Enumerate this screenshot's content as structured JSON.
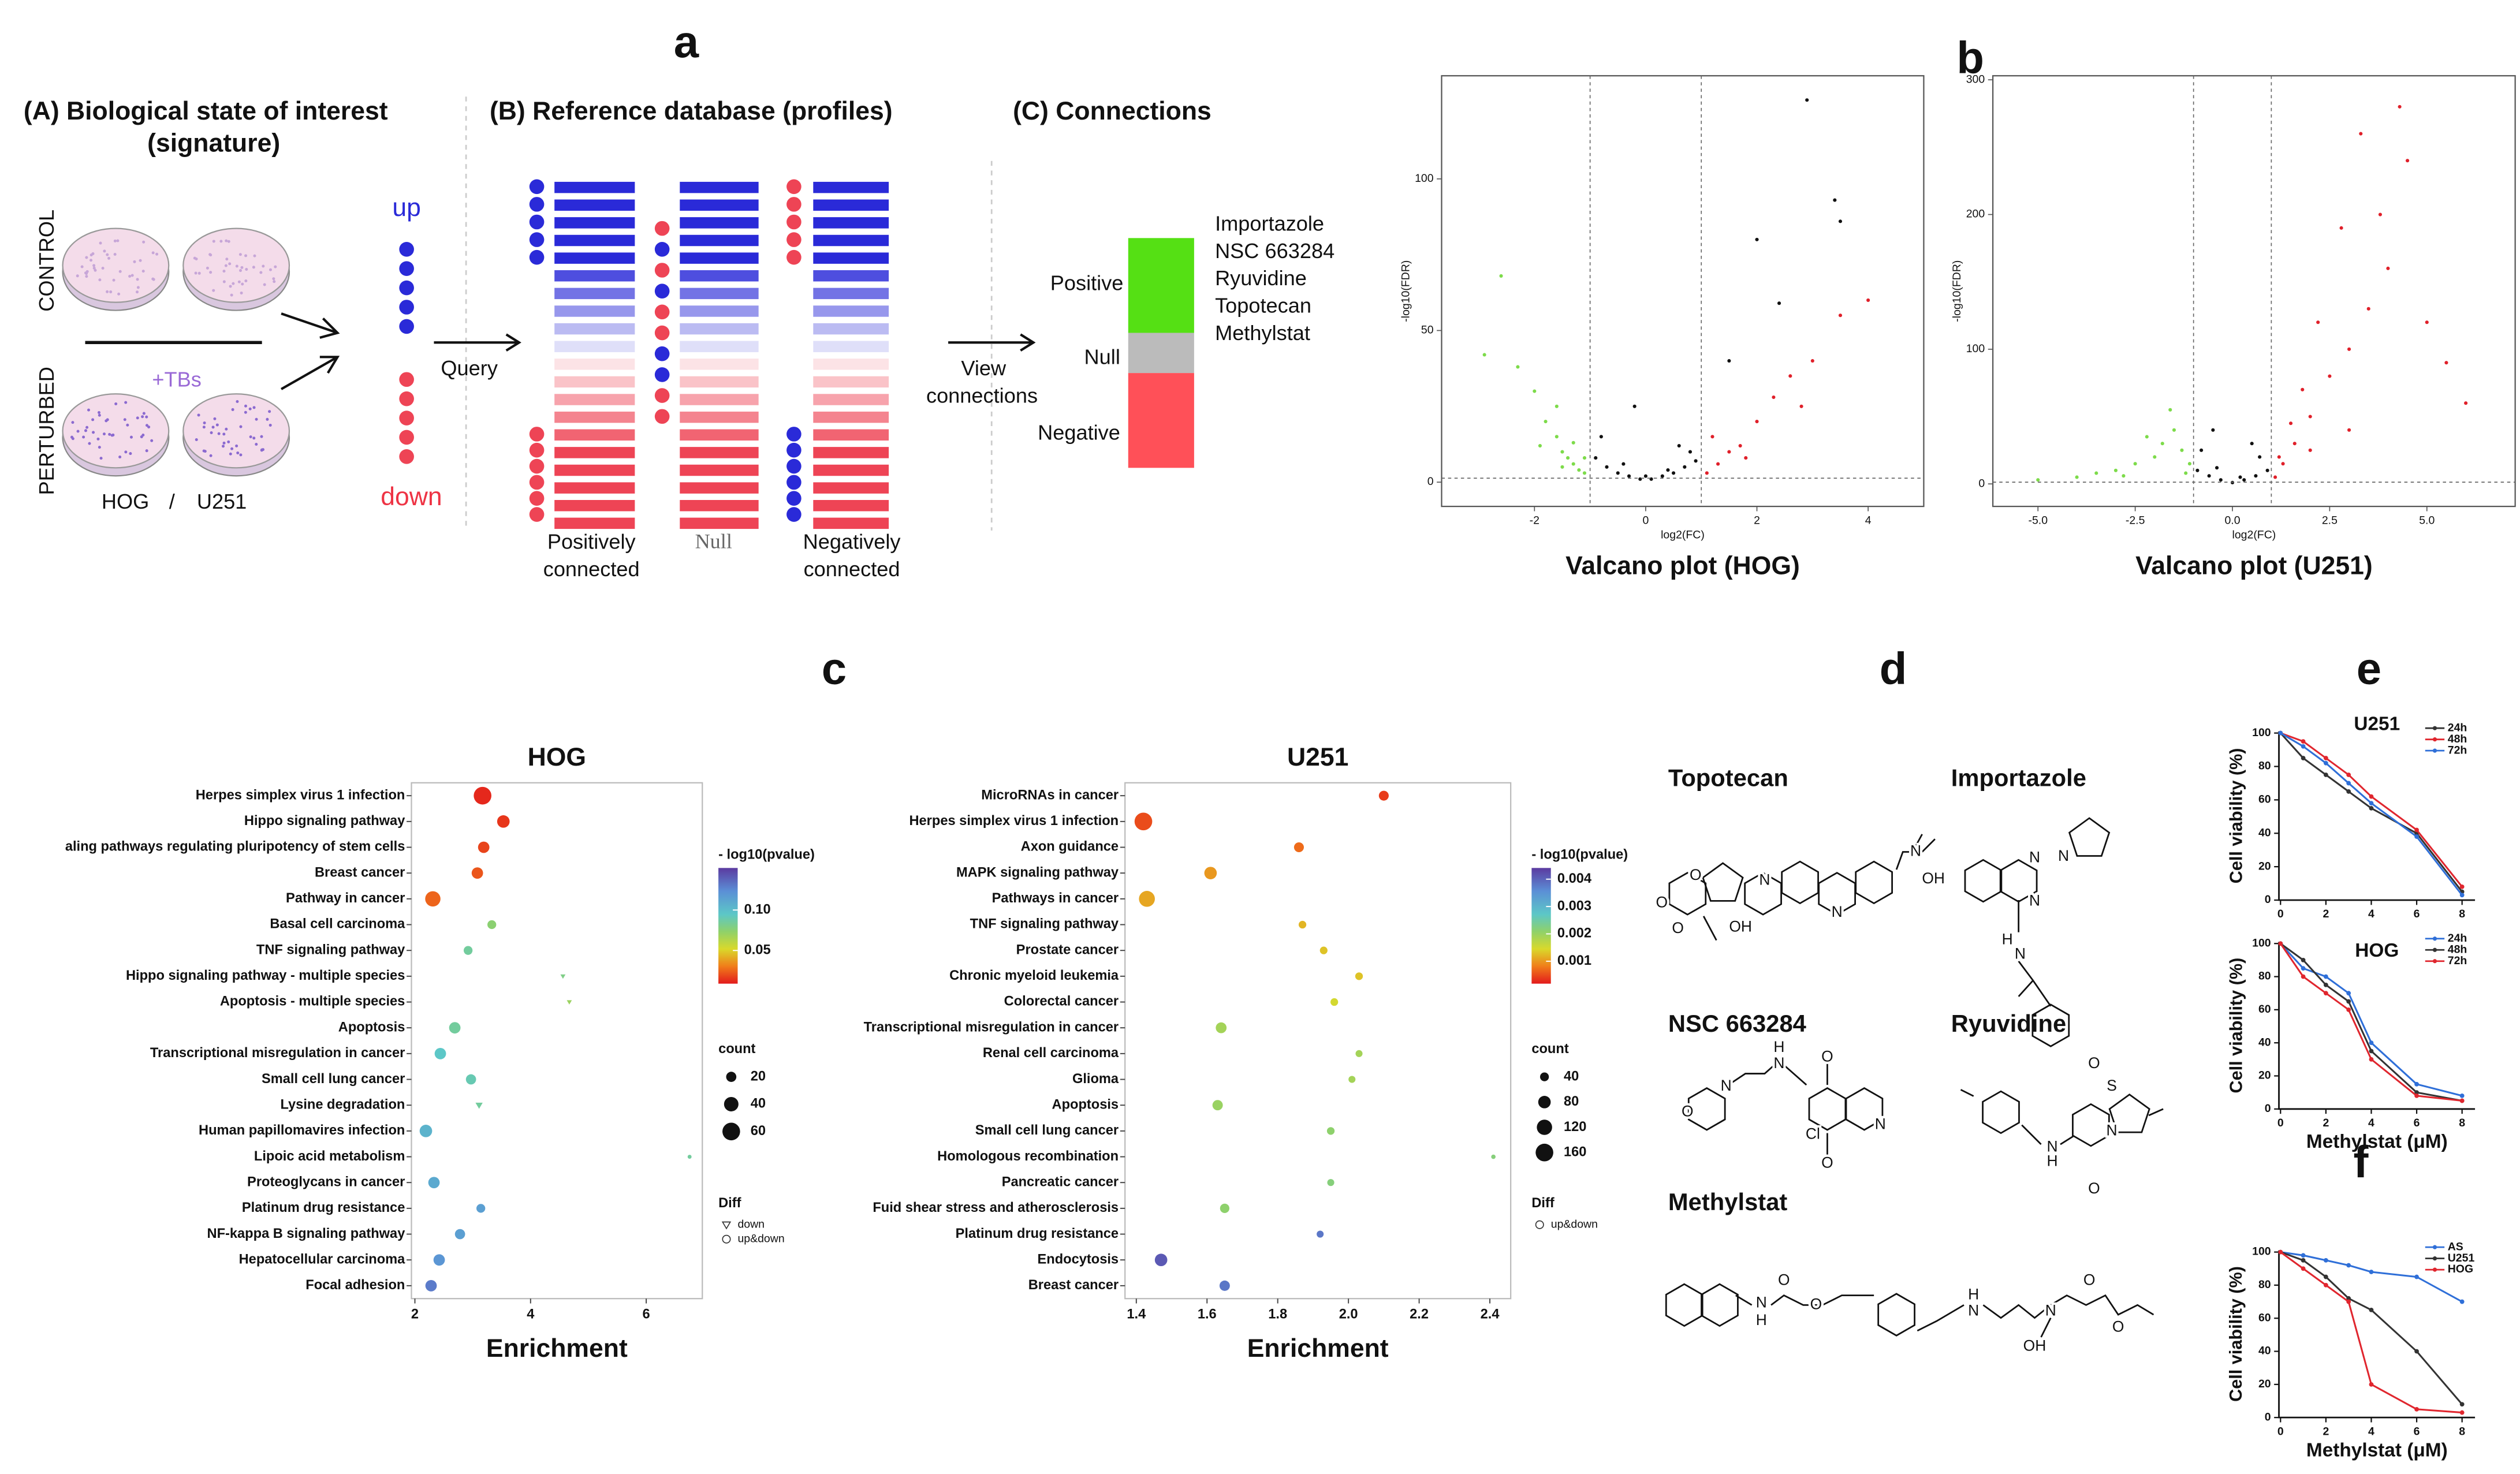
{
  "panel_labels": [
    "a",
    "b",
    "c",
    "d",
    "e",
    "f"
  ],
  "panel_a": {
    "state_title": [
      "(A) Biological state of interest",
      "(signature)"
    ],
    "control": "CONTROL",
    "perturbed": "PERTURBED",
    "treatment": "+TBs",
    "cell_lines": [
      "HOG",
      "U251"
    ],
    "separator": "/",
    "up": "up",
    "down": "down",
    "query": "Query",
    "database_title": "(B) Reference database (profiles)",
    "profiles": [
      [
        "Positively",
        "connected"
      ],
      [
        "Null"
      ],
      [
        "Negatively",
        "connected"
      ]
    ],
    "connections_title": "(C) Connections",
    "view": [
      "View",
      "connections"
    ],
    "connection_types": [
      "Positive",
      "Null",
      "Negative"
    ],
    "compounds": [
      "Importazole",
      "NSC 663284",
      "Ryuvidine",
      "Topotecan",
      "Methylstat"
    ]
  },
  "chart_data": [
    {
      "type": "scatter",
      "title": "Valcano plot (HOG)",
      "xlabel": "log2(FC)",
      "ylabel": "-log10(FDR)",
      "xlim": [
        -3.67,
        5
      ],
      "ylim": [
        -8,
        134
      ],
      "xticks": [
        -2,
        0,
        2,
        4
      ],
      "yticks": [
        0,
        50,
        100
      ],
      "vlines": [
        -1,
        1
      ],
      "hline": 1.3,
      "series": [
        {
          "color": "#111111",
          "x": [
            -0.9,
            -0.7,
            -0.5,
            -0.3,
            -0.1,
            0.1,
            0.3,
            0.5,
            0.7,
            0.9,
            -0.8,
            -0.4,
            0,
            0.4,
            0.8,
            2.9,
            3.4,
            3.5,
            2.4,
            2.0,
            1.5,
            -0.2,
            0.6
          ],
          "values": [
            8,
            5,
            3,
            2,
            1,
            1,
            2,
            3,
            5,
            7,
            15,
            6,
            2,
            4,
            10,
            126,
            93,
            86,
            59,
            80,
            40,
            25,
            12
          ]
        },
        {
          "color": "#7ddb4a",
          "x": [
            -2.6,
            -2.3,
            -2.0,
            -1.8,
            -1.6,
            -1.5,
            -1.4,
            -1.3,
            -1.2,
            -1.1,
            -1.9,
            -1.6,
            -1.3,
            -2.9,
            -1.1,
            -1.5
          ],
          "values": [
            68,
            38,
            30,
            20,
            15,
            10,
            8,
            6,
            4,
            3,
            12,
            25,
            13,
            42,
            8,
            5
          ]
        },
        {
          "color": "#e0202a",
          "x": [
            1.1,
            1.3,
            1.5,
            1.7,
            2.0,
            2.3,
            2.6,
            3.0,
            3.5,
            4.0,
            1.2,
            1.8,
            2.8
          ],
          "values": [
            3,
            6,
            10,
            12,
            20,
            28,
            35,
            40,
            55,
            60,
            15,
            8,
            25
          ]
        }
      ]
    },
    {
      "type": "scatter",
      "title": "Valcano plot (U251)",
      "xlabel": "log2(FC)",
      "ylabel": "-log10(FDR)",
      "xlim": [
        -6.16,
        7.27
      ],
      "ylim": [
        -16.7,
        303
      ],
      "xticks": [
        {
          "value": -5,
          "label": "-5.0"
        },
        {
          "value": -2.5,
          "label": "-2.5"
        },
        {
          "value": 0,
          "label": "0.0"
        },
        {
          "value": 2.5,
          "label": "2.5"
        },
        {
          "value": 5,
          "label": "5.0"
        }
      ],
      "yticks": [
        0,
        100,
        200,
        300
      ],
      "vlines": [
        -1,
        1
      ],
      "hline": 1.3,
      "series": [
        {
          "color": "#111111",
          "x": [
            -0.9,
            -0.6,
            -0.3,
            0,
            0.3,
            0.6,
            0.9,
            -0.8,
            -0.4,
            0.2,
            0.7,
            -0.5,
            0.5
          ],
          "values": [
            10,
            6,
            3,
            1,
            3,
            6,
            10,
            25,
            12,
            5,
            20,
            40,
            30
          ]
        },
        {
          "color": "#7ddb4a",
          "x": [
            -5.0,
            -4.0,
            -3.5,
            -3.0,
            -2.5,
            -2.0,
            -1.8,
            -1.5,
            -1.3,
            -1.1,
            -2.8,
            -2.2,
            -1.6,
            -1.2
          ],
          "values": [
            3,
            5,
            8,
            10,
            15,
            20,
            30,
            40,
            25,
            15,
            6,
            35,
            55,
            8
          ]
        },
        {
          "color": "#e0202a",
          "x": [
            1.1,
            1.3,
            1.6,
            2.0,
            2.5,
            3.0,
            3.5,
            4.0,
            4.5,
            4.3,
            3.3,
            2.2,
            1.8,
            1.5,
            2.8,
            3.8,
            5.0,
            5.5,
            6.0,
            1.2,
            2.0,
            3.0
          ],
          "values": [
            5,
            15,
            30,
            50,
            80,
            100,
            130,
            160,
            240,
            280,
            260,
            120,
            70,
            45,
            190,
            200,
            120,
            90,
            60,
            20,
            25,
            40
          ]
        }
      ]
    },
    {
      "type": "bubble",
      "title": "HOG",
      "xlabel": "Enrichment",
      "xlim": [
        1.94,
        6.97
      ],
      "xticks": [
        2,
        4,
        6
      ],
      "categories": [
        "Herpes simplex virus 1 infection",
        "Hippo signaling pathway",
        "aling pathways regulating pluripotency of stem cells",
        "Breast cancer",
        "Pathway in cancer",
        "Basal cell carcinoma",
        "TNF signaling pathway",
        "Hippo signaling pathway - multiple species",
        "Apoptosis - multiple species",
        "Apoptosis",
        "Transcriptional misregulation in cancer",
        "Small cell lung cancer",
        "Lysine degradation",
        "Human papillomavires infection",
        "Lipoic acid metabolism",
        "Proteoglycans in cancer",
        "Platinum drug resistance",
        "NF-kappa B signaling pathway",
        "Hepatocellular carcinoma",
        "Focal adhesion"
      ],
      "values": [
        3.17,
        3.53,
        3.19,
        3.08,
        2.31,
        3.33,
        2.92,
        4.56,
        4.67,
        2.69,
        2.44,
        2.97,
        3.11,
        2.19,
        6.75,
        2.33,
        3.14,
        2.78,
        2.42,
        2.28
      ],
      "counts": [
        60,
        30,
        25,
        25,
        45,
        15,
        15,
        5,
        5,
        25,
        25,
        20,
        10,
        30,
        3,
        25,
        15,
        20,
        25,
        25
      ],
      "color_values": [
        0.012,
        0.015,
        0.018,
        0.022,
        0.025,
        0.075,
        0.085,
        0.08,
        0.07,
        0.085,
        0.095,
        0.09,
        0.085,
        0.105,
        0.085,
        0.11,
        0.115,
        0.115,
        0.12,
        0.13
      ],
      "diff": [
        1,
        1,
        1,
        1,
        1,
        1,
        1,
        0,
        0,
        1,
        1,
        1,
        0,
        1,
        1,
        1,
        1,
        1,
        1,
        1
      ],
      "color_title": "- log10(pvalue)",
      "clim": [
        0.009,
        0.152
      ],
      "cticks": [
        {
          "value": 0.1,
          "label": "0.10"
        },
        0.05
      ],
      "size_title": "count",
      "size_ticks": [
        20,
        40,
        60
      ],
      "diff_title": "Diff",
      "diff_labels": [
        "down",
        "up&down"
      ]
    },
    {
      "type": "bubble",
      "title": "U251",
      "xlabel": "Enrichment",
      "xlim": [
        1.368,
        2.459
      ],
      "xticks": [
        1.4,
        1.6,
        1.8,
        {
          "value": 2,
          "label": "2.0"
        },
        2.2,
        2.4
      ],
      "categories": [
        "MicroRNAs in cancer",
        "Herpes simplex virus 1 infection",
        "Axon guidance",
        "MAPK signaling pathway",
        "Pathways in cancer",
        "TNF signaling pathway",
        "Prostate cancer",
        "Chronic myeloid leukemia",
        "Colorectal cancer",
        "Transcriptional misregulation in cancer",
        "Renal cell carcinoma",
        "Glioma",
        "Apoptosis",
        "Small cell lung cancer",
        "Homologous recombination",
        "Pancreatic cancer",
        "Fuid shear stress and atherosclerosis",
        "Platinum drug resistance",
        "Endocytosis",
        "Breast cancer"
      ],
      "values": [
        2.1,
        1.42,
        1.86,
        1.61,
        1.43,
        1.87,
        1.93,
        2.03,
        1.96,
        1.64,
        2.03,
        2.01,
        1.63,
        1.95,
        2.41,
        1.95,
        1.65,
        1.92,
        1.47,
        1.65
      ],
      "counts": [
        50,
        160,
        50,
        80,
        130,
        30,
        30,
        30,
        30,
        60,
        25,
        25,
        55,
        30,
        10,
        25,
        45,
        25,
        80,
        55
      ],
      "color_values": [
        0.0004,
        0.0005,
        0.0007,
        0.001,
        0.0011,
        0.0012,
        0.0013,
        0.0013,
        0.0015,
        0.0019,
        0.0019,
        0.0019,
        0.002,
        0.0021,
        0.0022,
        0.0022,
        0.0021,
        0.0038,
        0.0041,
        0.0038
      ],
      "diff": [
        0,
        0,
        0,
        0,
        0,
        0,
        0,
        0,
        0,
        0,
        0,
        0,
        0,
        0,
        0,
        0,
        0,
        0,
        0,
        0
      ],
      "color_title": "- log10(pvalue)",
      "clim": [
        0.00018,
        0.00441
      ],
      "cticks": [
        0.004,
        0.003,
        0.002,
        0.001
      ],
      "size_title": "count",
      "size_ticks": [
        40,
        80,
        120,
        160
      ],
      "diff_title": "Diff",
      "diff_labels": [
        "up&down"
      ]
    },
    {
      "type": "line",
      "title": "U251",
      "ylabel": "Cell viability (%)",
      "x": [
        0,
        1,
        2,
        3,
        4,
        6,
        8
      ],
      "xlim": [
        -0.07,
        8.57
      ],
      "ylim": [
        0,
        101
      ],
      "xticks": [
        0,
        2,
        4,
        6,
        8
      ],
      "yticks": [
        0,
        20,
        40,
        60,
        80,
        100
      ],
      "series": [
        {
          "name": "24h",
          "color": "#333333",
          "values": [
            100,
            85,
            75,
            65,
            55,
            40,
            5
          ]
        },
        {
          "name": "48h",
          "color": "#e0262e",
          "values": [
            100,
            95,
            85,
            75,
            62,
            42,
            8
          ]
        },
        {
          "name": "72h",
          "color": "#2f6fd8",
          "values": [
            100,
            92,
            82,
            70,
            58,
            38,
            3
          ]
        }
      ]
    },
    {
      "type": "line",
      "title": "HOG",
      "ylabel": "Cell viability (%)",
      "xlabel": "Methylstat (μM)",
      "x": [
        0,
        1,
        2,
        3,
        4,
        6,
        8
      ],
      "xlim": [
        -0.07,
        8.57
      ],
      "ylim": [
        0,
        101
      ],
      "xticks": [
        0,
        2,
        4,
        6,
        8
      ],
      "yticks": [
        0,
        20,
        40,
        60,
        80,
        100
      ],
      "series": [
        {
          "name": "24h",
          "color": "#2f6fd8",
          "values": [
            100,
            85,
            80,
            70,
            40,
            15,
            8
          ]
        },
        {
          "name": "48h",
          "color": "#333333",
          "values": [
            100,
            90,
            75,
            65,
            35,
            10,
            5
          ]
        },
        {
          "name": "72h",
          "color": "#e0262e",
          "values": [
            100,
            80,
            70,
            60,
            30,
            8,
            5
          ]
        }
      ]
    },
    {
      "type": "line",
      "ylabel": "Cell viability (%)",
      "xlabel": "Methylstat (μM)",
      "x": [
        0,
        1,
        2,
        3,
        4,
        6,
        8
      ],
      "xlim": [
        -0.07,
        8.57
      ],
      "ylim": [
        0,
        101
      ],
      "xticks": [
        0,
        2,
        4,
        6,
        8
      ],
      "yticks": [
        0,
        20,
        40,
        60,
        80,
        100
      ],
      "series": [
        {
          "name": "AS",
          "color": "#2f6fd8",
          "values": [
            100,
            98,
            95,
            92,
            88,
            85,
            70
          ]
        },
        {
          "name": "U251",
          "color": "#333333",
          "values": [
            100,
            95,
            85,
            72,
            65,
            40,
            8
          ]
        },
        {
          "name": "HOG",
          "color": "#e0262e",
          "values": [
            100,
            90,
            80,
            70,
            20,
            5,
            3
          ]
        }
      ]
    }
  ],
  "panel_d": {
    "molecules": [
      {
        "name": "Topotecan",
        "atoms": [
          "O",
          "N",
          "N",
          "OH",
          "N",
          "O",
          "O",
          "OH"
        ]
      },
      {
        "name": "Importazole",
        "atoms": [
          "N",
          "N",
          "N",
          "H",
          "N"
        ]
      },
      {
        "name": "NSC 663284",
        "atoms": [
          "O",
          "N",
          "H",
          "N",
          "O",
          "Cl",
          "O",
          "N"
        ]
      },
      {
        "name": "Ryuvidine",
        "atoms": [
          "O",
          "S",
          "N",
          "N",
          "H",
          "O"
        ]
      },
      {
        "name": "Methylstat",
        "atoms": [
          "N",
          "H",
          "O",
          "O",
          "N",
          "H",
          "N",
          "OH",
          "O",
          "O"
        ]
      }
    ]
  }
}
